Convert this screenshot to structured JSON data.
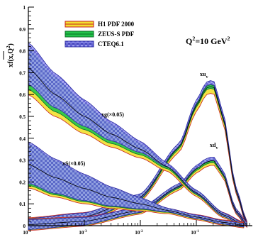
{
  "chart_data": {
    "type": "line",
    "title": "Q²=10 GeV²",
    "title_main": "Q",
    "title_sup": "2",
    "title_rest": "=10 GeV",
    "title_sup2": "2",
    "ylabel": "x f(x, Q²)",
    "ylabel_parts": {
      "pre": "xf(x,Q",
      "sup": "2",
      "post": ")"
    },
    "x_scale": "log",
    "xlim": [
      0.0001,
      1
    ],
    "ylim": [
      0,
      1
    ],
    "x_ticks": [
      {
        "base": "10",
        "exp": "-4"
      },
      {
        "base": "10",
        "exp": "-3"
      },
      {
        "base": "10",
        "exp": "-2"
      },
      {
        "base": "10",
        "exp": "-1"
      }
    ],
    "y_ticks": [
      "0",
      "0.1",
      "0.2",
      "0.3",
      "0.4",
      "0.5",
      "0.6",
      "0.7",
      "0.8",
      "0.9",
      "1"
    ],
    "legend": [
      {
        "name": "H1 PDF 2000",
        "color": "#f2e030",
        "edge": "#c81e1e"
      },
      {
        "name": "ZEUS-S PDF",
        "color": "#22c44a",
        "edge": "#0a6a24"
      },
      {
        "name": "CTEQ6.1",
        "color": "#8c8ce8",
        "edge": "#2b2ba0"
      }
    ],
    "curve_labels": [
      {
        "key": "xuv",
        "main": "xu",
        "sub": "v"
      },
      {
        "key": "xdv",
        "main": "xd",
        "sub": "v"
      },
      {
        "key": "xg",
        "text": "xg(×0.05)"
      },
      {
        "key": "xS",
        "text": "xS(×0.05)"
      }
    ],
    "series": [
      {
        "name": "xu_v",
        "x": [
          0.0001,
          0.001,
          0.01,
          0.05,
          0.1,
          0.15,
          0.2,
          0.3,
          0.5,
          0.8
        ],
        "values": [
          0.01,
          0.04,
          0.13,
          0.36,
          0.55,
          0.63,
          0.64,
          0.5,
          0.17,
          0.01
        ]
      },
      {
        "name": "xd_v",
        "x": [
          0.0001,
          0.001,
          0.01,
          0.05,
          0.1,
          0.15,
          0.2,
          0.3,
          0.5,
          0.8
        ],
        "values": [
          0.005,
          0.02,
          0.07,
          0.18,
          0.26,
          0.29,
          0.3,
          0.24,
          0.07,
          0.005
        ]
      },
      {
        "name": "xg(x0.05)",
        "x": [
          0.0001,
          0.0003,
          0.001,
          0.003,
          0.01,
          0.03,
          0.1,
          0.3,
          0.7
        ],
        "values": [
          0.72,
          0.6,
          0.5,
          0.42,
          0.35,
          0.27,
          0.15,
          0.05,
          0.005
        ]
      },
      {
        "name": "xS(x0.05)",
        "x": [
          0.0001,
          0.0003,
          0.001,
          0.003,
          0.01,
          0.03,
          0.1,
          0.3,
          0.7
        ],
        "values": [
          0.28,
          0.22,
          0.17,
          0.13,
          0.1,
          0.07,
          0.04,
          0.015,
          0.002
        ]
      }
    ],
    "grid": false
  }
}
